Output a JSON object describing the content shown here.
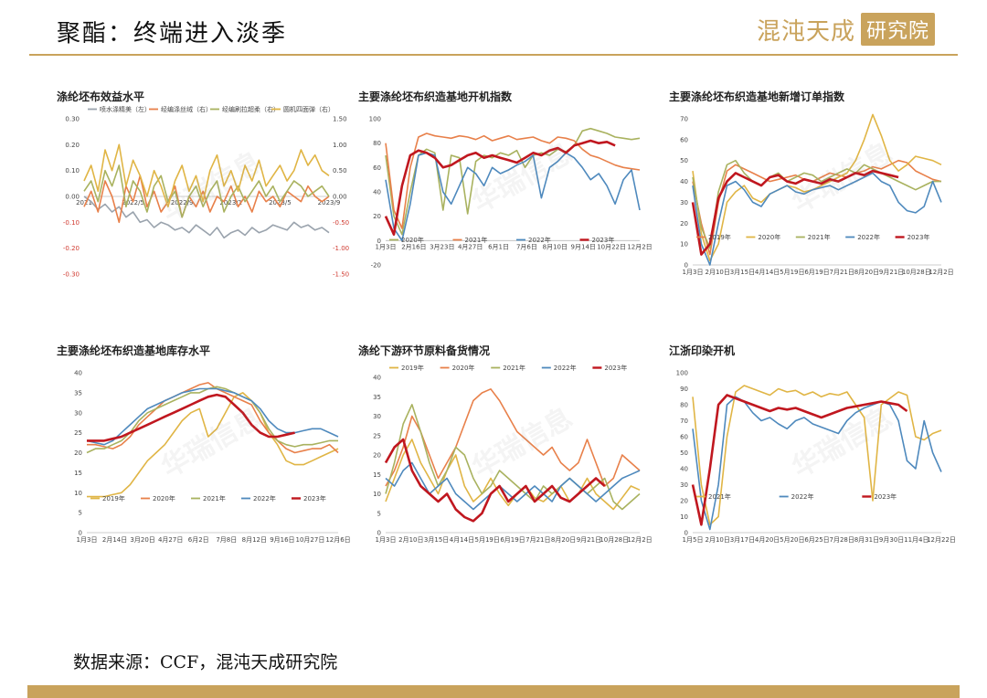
{
  "header": {
    "title": "聚酯：终端进入淡季",
    "logo_brand": "混沌天成",
    "logo_box": "研究院"
  },
  "watermark": "华瑞信息",
  "source": "数据来源：CCF，混沌天成研究院",
  "colors": {
    "accent": "#c9a35c",
    "c2019": "#e0b545",
    "c2020": "#e8804a",
    "c2021": "#a9b25f",
    "c2022": "#4e89bd",
    "c2023": "#c0171f",
    "gray": "#9aa3ad"
  },
  "chart_data": [
    {
      "type": "line",
      "title": "涤纶坯布效益水平",
      "left_ticks": [
        "0.30",
        "0.20",
        "0.10",
        "0.00",
        "-0.10",
        "-0.20",
        "-0.30"
      ],
      "right_ticks": [
        "1.50",
        "1.00",
        "0.50",
        "0.00",
        "-0.50",
        "-1.00",
        "-1.50"
      ],
      "ylim": [
        -0.3,
        0.3
      ],
      "y2lim": [
        -1.5,
        1.5
      ],
      "x_ticks": [
        "2021",
        "2022/5",
        "2022/9",
        "2023/1",
        "2023/5",
        "2023/9"
      ],
      "series": [
        {
          "name": "喷水涤精美（左）",
          "color": "#9aa3ad",
          "axis": "left",
          "values": [
            0.0,
            -0.02,
            -0.05,
            -0.03,
            -0.06,
            -0.04,
            -0.08,
            -0.06,
            -0.1,
            -0.09,
            -0.12,
            -0.1,
            -0.11,
            -0.13,
            -0.12,
            -0.14,
            -0.11,
            -0.13,
            -0.15,
            -0.12,
            -0.16,
            -0.14,
            -0.13,
            -0.15,
            -0.12,
            -0.14,
            -0.13,
            -0.11,
            -0.12,
            -0.13,
            -0.1,
            -0.12,
            -0.11,
            -0.13,
            -0.12,
            -0.14
          ]
        },
        {
          "name": "经编涤丝绒（右）",
          "color": "#e8804a",
          "axis": "right",
          "values": [
            -0.2,
            0.1,
            -0.3,
            0.3,
            0.0,
            -0.5,
            0.2,
            -0.1,
            0.4,
            -0.2,
            0.1,
            -0.3,
            -0.1,
            0.2,
            -0.4,
            0.0,
            -0.2,
            0.1,
            -0.3,
            0.0,
            -0.1,
            0.2,
            -0.2,
            0.0,
            -0.3,
            0.1,
            -0.1,
            0.0,
            -0.2,
            0.1,
            0.0,
            -0.1,
            0.2,
            0.0,
            -0.1,
            0.0
          ]
        },
        {
          "name": "经编刷拉超柔（右）",
          "color": "#a9b25f",
          "axis": "right",
          "values": [
            0.1,
            0.3,
            -0.1,
            0.5,
            0.2,
            0.6,
            -0.2,
            0.3,
            0.1,
            -0.3,
            0.2,
            0.4,
            -0.1,
            0.1,
            -0.4,
            0.0,
            0.2,
            -0.2,
            0.1,
            0.3,
            -0.3,
            0.0,
            0.2,
            -0.1,
            0.1,
            0.3,
            0.0,
            0.2,
            -0.1,
            0.1,
            0.3,
            0.2,
            0.0,
            0.1,
            0.2,
            0.0
          ]
        },
        {
          "name": "圆机四面弹（右）",
          "color": "#e0b545",
          "axis": "right",
          "values": [
            0.3,
            0.6,
            0.1,
            0.9,
            0.5,
            1.0,
            0.2,
            0.7,
            0.4,
            0.0,
            0.5,
            0.2,
            -0.2,
            0.3,
            0.6,
            0.1,
            0.4,
            -0.1,
            0.5,
            0.8,
            0.2,
            0.5,
            0.1,
            0.6,
            0.3,
            0.7,
            0.2,
            0.4,
            0.6,
            0.3,
            0.5,
            0.9,
            0.6,
            0.8,
            0.5,
            0.4
          ]
        }
      ]
    },
    {
      "type": "line",
      "title": "主要涤纶坯布织造基地开机指数",
      "y_ticks": [
        "100",
        "80",
        "60",
        "40",
        "20",
        "0",
        "-20"
      ],
      "ylim": [
        -20,
        100
      ],
      "x_ticks": [
        "1月3日",
        "2月16日",
        "3月23日",
        "4月27日",
        "6月1日",
        "7月6日",
        "8月10日",
        "9月14日",
        "10月22日",
        "12月2日"
      ],
      "series": [
        {
          "name": "2020年",
          "color": "#a9b25f",
          "values": [
            70,
            20,
            5,
            40,
            70,
            75,
            72,
            25,
            70,
            68,
            22,
            65,
            70,
            68,
            72,
            70,
            74,
            60,
            70,
            72,
            70,
            75,
            73,
            78,
            90,
            92,
            90,
            88,
            85,
            84,
            83,
            84
          ]
        },
        {
          "name": "2021年",
          "color": "#e8804a",
          "values": [
            80,
            25,
            10,
            60,
            85,
            88,
            86,
            85,
            84,
            86,
            85,
            83,
            86,
            82,
            84,
            86,
            83,
            84,
            85,
            82,
            80,
            85,
            84,
            82,
            75,
            70,
            68,
            65,
            62,
            60,
            59,
            58
          ]
        },
        {
          "name": "2022年",
          "color": "#4e89bd",
          "values": [
            50,
            10,
            0,
            30,
            70,
            72,
            70,
            40,
            30,
            45,
            60,
            55,
            45,
            60,
            55,
            58,
            62,
            65,
            70,
            35,
            60,
            65,
            72,
            68,
            60,
            50,
            55,
            45,
            30,
            50,
            58,
            25
          ]
        },
        {
          "name": "2023年",
          "color": "#c0171f",
          "values": [
            20,
            5,
            45,
            70,
            74,
            72,
            68,
            60,
            62,
            66,
            70,
            72,
            68,
            70,
            68,
            66,
            64,
            68,
            72,
            70,
            74,
            76,
            72,
            78,
            80,
            82,
            80,
            81,
            78,
            null,
            null,
            null
          ]
        }
      ]
    },
    {
      "type": "line",
      "title": "主要涤纶坯布织造基地新增订单指数",
      "y_ticks": [
        "70",
        "60",
        "50",
        "40",
        "30",
        "20",
        "10",
        "0"
      ],
      "ylim": [
        0,
        70
      ],
      "x_ticks": [
        "1月3日",
        "2月10日",
        "3月15日",
        "4月14日",
        "5月19日",
        "6月19日",
        "7月21日",
        "8月20日",
        "9月21日",
        "10月28日",
        "12月2日"
      ],
      "series": [
        {
          "name": "2019年",
          "color": "#e8804a",
          "values": [
            40,
            20,
            5,
            30,
            45,
            48,
            46,
            44,
            42,
            40,
            41,
            42,
            43,
            41,
            40,
            42,
            44,
            43,
            42,
            44,
            45,
            47,
            46,
            48,
            50,
            49,
            45,
            43,
            41,
            40
          ]
        },
        {
          "name": "2020年",
          "color": "#e0b545",
          "values": [
            45,
            15,
            2,
            10,
            30,
            35,
            38,
            32,
            30,
            34,
            36,
            38,
            37,
            35,
            36,
            38,
            40,
            42,
            44,
            50,
            60,
            72,
            62,
            50,
            45,
            48,
            52,
            51,
            50,
            48
          ]
        },
        {
          "name": "2021年",
          "color": "#a9b25f",
          "values": [
            42,
            18,
            8,
            35,
            48,
            50,
            44,
            40,
            38,
            42,
            44,
            40,
            42,
            44,
            43,
            40,
            42,
            44,
            46,
            44,
            48,
            46,
            44,
            42,
            40,
            38,
            36,
            38,
            40,
            40
          ]
        },
        {
          "name": "2022年",
          "color": "#4e89bd",
          "values": [
            38,
            10,
            0,
            20,
            38,
            40,
            36,
            30,
            28,
            34,
            36,
            38,
            35,
            34,
            36,
            37,
            38,
            36,
            38,
            40,
            42,
            44,
            40,
            38,
            30,
            26,
            25,
            28,
            40,
            30
          ]
        },
        {
          "name": "2023年",
          "color": "#c0171f",
          "values": [
            30,
            5,
            10,
            32,
            40,
            44,
            42,
            40,
            38,
            42,
            43,
            40,
            39,
            41,
            40,
            39,
            41,
            40,
            42,
            44,
            43,
            45,
            44,
            43,
            42,
            null,
            null,
            null,
            null,
            null
          ]
        }
      ]
    },
    {
      "type": "line",
      "title": "主要涤纶坯布织造基地库存水平",
      "y_ticks": [
        "40",
        "35",
        "30",
        "25",
        "20",
        "15",
        "10",
        "5",
        "0"
      ],
      "ylim": [
        0,
        40
      ],
      "x_ticks": [
        "1月3日",
        "2月14日",
        "3月20日",
        "4月27日",
        "6月2日",
        "7月8日",
        "8月12日",
        "9月16日",
        "10月27日",
        "12月6日"
      ],
      "series": [
        {
          "name": "2019年",
          "color": "#e0b545",
          "values": [
            9,
            9,
            9,
            9.5,
            10,
            12,
            15,
            18,
            20,
            22,
            25,
            28,
            30,
            31,
            24,
            26,
            30,
            34,
            35,
            33,
            30,
            25,
            22,
            18,
            17,
            17,
            18,
            19,
            20,
            21
          ]
        },
        {
          "name": "2020年",
          "color": "#e8804a",
          "values": [
            22,
            22,
            21.5,
            21,
            22,
            24,
            27,
            29,
            31,
            33,
            34,
            35,
            36,
            37,
            37.5,
            36,
            35,
            34,
            33,
            32,
            28,
            25,
            23,
            21,
            20,
            20.5,
            21,
            21,
            22,
            20
          ]
        },
        {
          "name": "2021年",
          "color": "#a9b25f",
          "values": [
            20,
            21,
            21,
            22,
            23,
            25,
            28,
            30,
            31,
            32,
            33,
            34,
            35,
            35,
            36,
            36.5,
            36,
            35,
            34,
            33,
            30,
            26,
            23,
            22,
            21.5,
            22,
            22,
            22.5,
            23,
            23
          ]
        },
        {
          "name": "2022年",
          "color": "#4e89bd",
          "values": [
            23,
            22.5,
            22,
            23,
            25,
            27,
            29,
            31,
            32,
            33,
            34,
            35,
            35.5,
            36,
            36,
            36,
            35.5,
            35,
            34,
            33,
            31,
            28,
            26,
            25,
            25,
            25.5,
            26,
            26,
            25,
            24
          ]
        },
        {
          "name": "2023年",
          "color": "#c0171f",
          "values": [
            23,
            23,
            23,
            23.5,
            24,
            25,
            26,
            27,
            28,
            29,
            30,
            31,
            32,
            33,
            34,
            34.5,
            34,
            32,
            30,
            27,
            25,
            24,
            24,
            24.5,
            25,
            null,
            null,
            null,
            null,
            null
          ]
        }
      ]
    },
    {
      "type": "line",
      "title": "涤纶下游环节原料备货情况",
      "y_ticks": [
        "40",
        "35",
        "30",
        "25",
        "20",
        "15",
        "10",
        "5",
        "0"
      ],
      "ylim": [
        0,
        40
      ],
      "x_ticks": [
        "1月3日",
        "2月10日",
        "3月15日",
        "4月14日",
        "5月19日",
        "6月19日",
        "7月21日",
        "8月20日",
        "9月21日",
        "10月28日",
        "12月2日"
      ],
      "series": [
        {
          "name": "2019年",
          "color": "#e0b545",
          "values": [
            8,
            14,
            20,
            24,
            18,
            14,
            10,
            16,
            20,
            12,
            8,
            10,
            14,
            10,
            7,
            10,
            12,
            9,
            8,
            10,
            12,
            8,
            10,
            14,
            10,
            8,
            6,
            9,
            12,
            11
          ]
        },
        {
          "name": "2020年",
          "color": "#e8804a",
          "values": [
            12,
            16,
            22,
            30,
            26,
            20,
            14,
            18,
            22,
            28,
            34,
            36,
            37,
            34,
            30,
            26,
            24,
            22,
            20,
            22,
            18,
            16,
            18,
            24,
            18,
            12,
            14,
            20,
            18,
            16
          ]
        },
        {
          "name": "2021年",
          "color": "#a9b25f",
          "values": [
            10,
            18,
            28,
            33,
            26,
            18,
            12,
            16,
            22,
            20,
            14,
            10,
            12,
            16,
            14,
            12,
            10,
            8,
            12,
            10,
            12,
            14,
            12,
            10,
            12,
            14,
            8,
            6,
            8,
            10
          ]
        },
        {
          "name": "2022年",
          "color": "#4e89bd",
          "values": [
            14,
            12,
            16,
            18,
            14,
            10,
            12,
            14,
            10,
            8,
            6,
            8,
            10,
            12,
            10,
            8,
            10,
            12,
            10,
            8,
            12,
            14,
            12,
            10,
            8,
            10,
            12,
            14,
            15,
            16
          ]
        },
        {
          "name": "2023年",
          "color": "#c0171f",
          "values": [
            18,
            22,
            24,
            16,
            12,
            10,
            8,
            10,
            6,
            4,
            3,
            5,
            10,
            12,
            8,
            10,
            12,
            8,
            10,
            12,
            9,
            8,
            10,
            12,
            14,
            12,
            null,
            null,
            null,
            null
          ]
        }
      ]
    },
    {
      "type": "line",
      "title": "江浙印染开机",
      "y_ticks": [
        "100",
        "90",
        "80",
        "70",
        "60",
        "50",
        "40",
        "30",
        "20",
        "10",
        "0"
      ],
      "ylim": [
        0,
        100
      ],
      "x_ticks": [
        "1月5日",
        "2月10日",
        "3月17日",
        "4月20日",
        "5月20日",
        "6月25日",
        "7月28日",
        "8月31日",
        "9月30日",
        "11月4日",
        "12月22日"
      ],
      "series": [
        {
          "name": "2021年",
          "color": "#e0b545",
          "values": [
            85,
            30,
            5,
            10,
            60,
            88,
            92,
            90,
            88,
            86,
            90,
            88,
            89,
            86,
            88,
            85,
            87,
            86,
            88,
            80,
            72,
            20,
            80,
            84,
            88,
            86,
            60,
            58,
            62,
            64
          ]
        },
        {
          "name": "2022年",
          "color": "#4e89bd",
          "values": [
            65,
            20,
            2,
            30,
            80,
            85,
            82,
            75,
            70,
            72,
            68,
            65,
            70,
            72,
            68,
            66,
            64,
            62,
            70,
            75,
            78,
            80,
            82,
            80,
            70,
            45,
            40,
            70,
            50,
            38
          ]
        },
        {
          "name": "2023年",
          "color": "#c0171f",
          "values": [
            30,
            5,
            40,
            80,
            86,
            84,
            82,
            80,
            78,
            76,
            78,
            77,
            78,
            76,
            74,
            72,
            74,
            76,
            78,
            79,
            80,
            81,
            82,
            81,
            80,
            76,
            null,
            null,
            null,
            null
          ]
        }
      ]
    }
  ]
}
